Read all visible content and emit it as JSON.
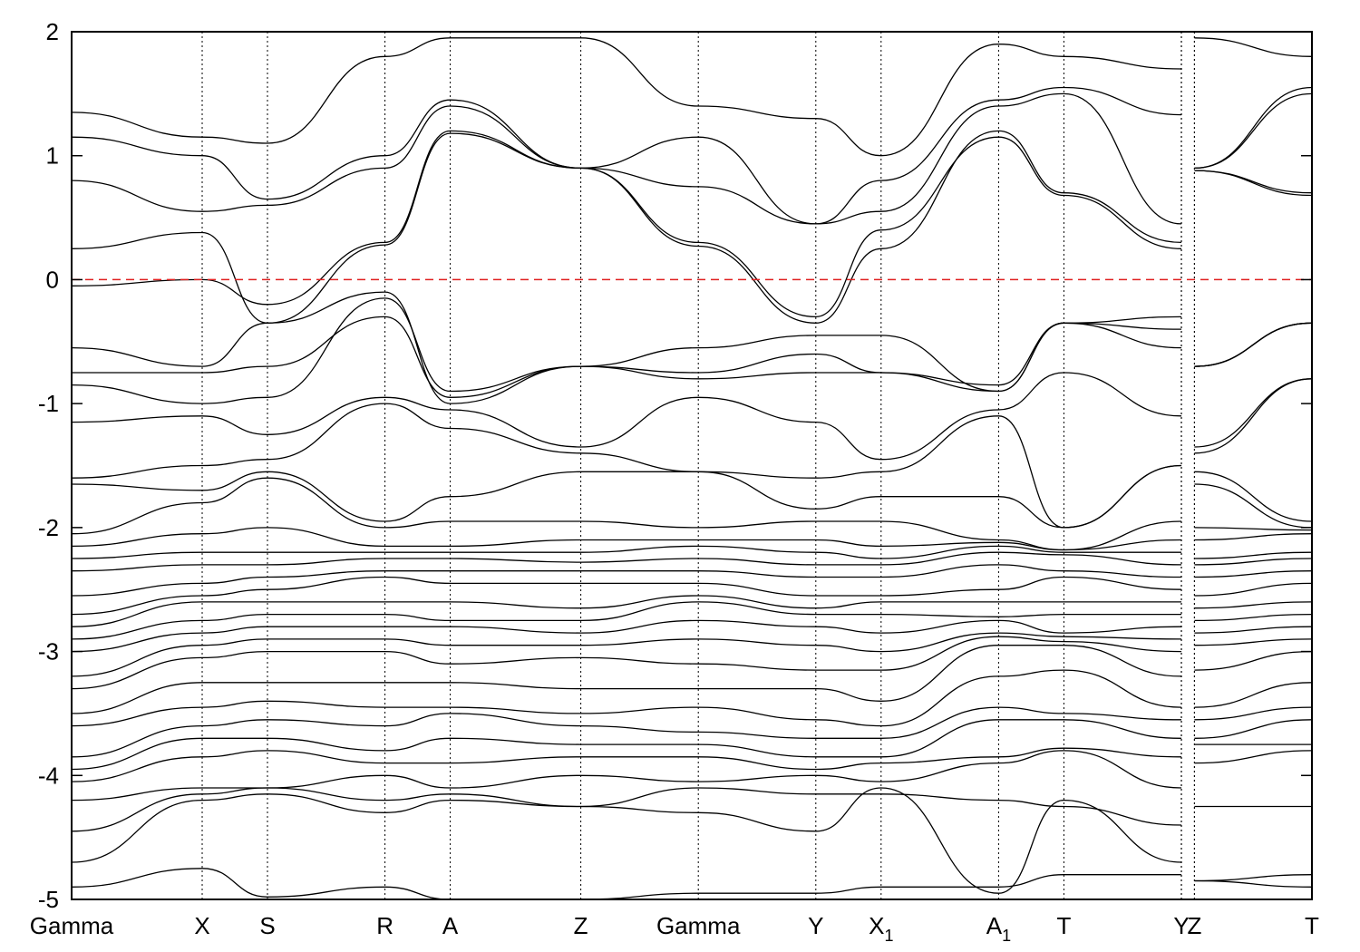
{
  "chart_data": {
    "type": "line",
    "title": "",
    "xlabel": "",
    "ylabel": "",
    "ylim": [
      -5,
      2
    ],
    "y_ticks": [
      -5,
      -4,
      -3,
      -2,
      -1,
      0,
      1,
      2
    ],
    "grid": "vertical dotted lines at high-symmetry points",
    "fermi_level": {
      "y": 0,
      "color": "#e02020",
      "style": "dashed"
    },
    "band_color": "#000000",
    "kpath": [
      {
        "label": "Gamma",
        "sub": "",
        "x": 0.0
      },
      {
        "label": "X",
        "sub": "",
        "x": 0.5
      },
      {
        "label": "S",
        "sub": "",
        "x": 0.75
      },
      {
        "label": "R",
        "sub": "",
        "x": 1.2
      },
      {
        "label": "A",
        "sub": "",
        "x": 1.45
      },
      {
        "label": "Z",
        "sub": "",
        "x": 1.95
      },
      {
        "label": "Gamma",
        "sub": "",
        "x": 2.4
      },
      {
        "label": "Y",
        "sub": "",
        "x": 2.85
      },
      {
        "label": "X",
        "sub": "1",
        "x": 3.1
      },
      {
        "label": "A",
        "sub": "1",
        "x": 3.55
      },
      {
        "label": "T",
        "sub": "",
        "x": 3.8
      },
      {
        "label": "Y",
        "sub": "",
        "x": 4.25
      },
      {
        "label": "Z",
        "sub": "",
        "x": 4.3
      },
      {
        "label": "T",
        "sub": "",
        "x": 4.75
      }
    ],
    "path_breaks_after_index": [
      11
    ],
    "bands": [
      [
        -4.9,
        -4.75,
        -4.98,
        -4.9,
        -5.0,
        -5.0,
        -4.95,
        -4.95,
        -4.9,
        -4.9,
        -4.8,
        -4.8,
        -4.85,
        -4.8
      ],
      [
        -4.7,
        -4.2,
        -4.15,
        -4.3,
        -4.2,
        -4.25,
        -4.3,
        -4.45,
        -4.1,
        -4.95,
        -4.2,
        -4.7,
        -4.85,
        -4.9
      ],
      [
        -4.45,
        -4.15,
        -4.1,
        -4.2,
        -4.15,
        -4.25,
        -4.1,
        -4.15,
        -4.15,
        -4.2,
        -4.25,
        -4.4,
        -4.25,
        -4.25
      ],
      [
        -4.2,
        -4.1,
        -4.1,
        -4.0,
        -4.1,
        -4.0,
        -4.05,
        -4.0,
        -4.05,
        -3.9,
        -3.8,
        -4.1,
        -3.9,
        -3.8
      ],
      [
        -4.05,
        -3.85,
        -3.8,
        -3.9,
        -3.9,
        -3.85,
        -3.85,
        -3.95,
        -3.9,
        -3.85,
        -3.78,
        -3.85,
        -3.75,
        -3.75
      ],
      [
        -3.95,
        -3.7,
        -3.7,
        -3.8,
        -3.7,
        -3.75,
        -3.75,
        -3.85,
        -3.85,
        -3.55,
        -3.55,
        -3.7,
        -3.7,
        -3.55
      ],
      [
        -3.85,
        -3.6,
        -3.55,
        -3.6,
        -3.5,
        -3.6,
        -3.65,
        -3.7,
        -3.7,
        -3.45,
        -3.5,
        -3.55,
        -3.55,
        -3.45
      ],
      [
        -3.6,
        -3.45,
        -3.4,
        -3.45,
        -3.45,
        -3.5,
        -3.45,
        -3.55,
        -3.6,
        -3.2,
        -3.15,
        -3.45,
        -3.45,
        -3.25
      ],
      [
        -3.5,
        -3.25,
        -3.25,
        -3.25,
        -3.25,
        -3.3,
        -3.3,
        -3.3,
        -3.4,
        -2.95,
        -2.95,
        -3.2,
        -3.15,
        -3.0
      ],
      [
        -3.3,
        -3.05,
        -3.0,
        -3.0,
        -3.1,
        -3.05,
        -3.1,
        -3.15,
        -3.15,
        -2.88,
        -2.92,
        -3.0,
        -2.95,
        -2.9
      ],
      [
        -3.2,
        -2.95,
        -2.9,
        -2.9,
        -2.95,
        -2.95,
        -2.9,
        -2.95,
        -3.0,
        -2.85,
        -2.88,
        -2.9,
        -2.85,
        -2.8
      ],
      [
        -3.0,
        -2.85,
        -2.8,
        -2.8,
        -2.8,
        -2.85,
        -2.75,
        -2.8,
        -2.85,
        -2.75,
        -2.85,
        -2.8,
        -2.75,
        -2.7
      ],
      [
        -2.9,
        -2.75,
        -2.7,
        -2.7,
        -2.75,
        -2.75,
        -2.6,
        -2.7,
        -2.7,
        -2.72,
        -2.7,
        -2.7,
        -2.65,
        -2.6
      ],
      [
        -2.8,
        -2.6,
        -2.6,
        -2.6,
        -2.6,
        -2.65,
        -2.55,
        -2.65,
        -2.6,
        -2.6,
        -2.6,
        -2.6,
        -2.55,
        -2.45
      ],
      [
        -2.7,
        -2.55,
        -2.5,
        -2.4,
        -2.45,
        -2.45,
        -2.45,
        -2.55,
        -2.55,
        -2.5,
        -2.4,
        -2.5,
        -2.4,
        -2.35
      ],
      [
        -2.55,
        -2.45,
        -2.4,
        -2.35,
        -2.35,
        -2.35,
        -2.35,
        -2.4,
        -2.4,
        -2.3,
        -2.35,
        -2.4,
        -2.3,
        -2.25
      ],
      [
        -2.35,
        -2.3,
        -2.3,
        -2.25,
        -2.25,
        -2.28,
        -2.25,
        -2.3,
        -2.3,
        -2.2,
        -2.22,
        -2.3,
        -2.25,
        -2.2
      ],
      [
        -2.25,
        -2.2,
        -2.2,
        -2.2,
        -2.2,
        -2.2,
        -2.15,
        -2.2,
        -2.25,
        -2.15,
        -2.2,
        -2.2,
        -2.1,
        -2.05
      ],
      [
        -2.15,
        -2.05,
        -2.0,
        -2.15,
        -2.15,
        -2.1,
        -2.1,
        -2.1,
        -2.15,
        -2.12,
        -2.18,
        -2.1,
        -2.0,
        -2.02
      ],
      [
        -2.05,
        -1.8,
        -1.6,
        -2.0,
        -1.95,
        -1.95,
        -2.0,
        -1.95,
        -1.95,
        -2.1,
        -2.18,
        -1.95,
        -1.65,
        -2.0
      ],
      [
        -1.65,
        -1.7,
        -1.55,
        -1.95,
        -1.75,
        -1.55,
        -1.55,
        -1.85,
        -1.75,
        -1.75,
        -2.0,
        -1.5,
        -1.55,
        -1.95
      ],
      [
        -1.6,
        -1.5,
        -1.45,
        -1.0,
        -1.2,
        -1.4,
        -1.55,
        -1.6,
        -1.55,
        -1.1,
        -2.0,
        -1.5,
        -1.4,
        -0.8
      ],
      [
        -1.15,
        -1.1,
        -1.25,
        -0.95,
        -1.05,
        -1.35,
        -0.95,
        -1.15,
        -1.45,
        -1.05,
        -0.75,
        -1.1,
        -1.35,
        -0.8
      ],
      [
        -0.85,
        -1.0,
        -0.95,
        -0.15,
        -0.9,
        -0.7,
        -0.8,
        -0.75,
        -0.75,
        -0.9,
        -0.35,
        -0.55,
        -0.7,
        -0.35
      ],
      [
        -0.75,
        -0.75,
        -0.7,
        -0.3,
        -0.95,
        -0.7,
        -0.75,
        -0.6,
        -0.75,
        -0.85,
        -0.35,
        -0.4,
        -0.7,
        -0.35
      ],
      [
        -0.55,
        -0.7,
        -0.35,
        -0.1,
        -1.0,
        -0.7,
        -0.55,
        -0.45,
        -0.45,
        -0.9,
        -0.35,
        -0.3,
        -0.7,
        -0.35
      ],
      [
        -0.05,
        0.0,
        -0.2,
        0.3,
        1.2,
        0.9,
        0.27,
        -0.35,
        0.25,
        1.2,
        0.7,
        0.3,
        0.88,
        0.7
      ],
      [
        0.25,
        0.38,
        -0.35,
        0.28,
        1.18,
        0.9,
        0.3,
        -0.3,
        0.4,
        1.15,
        0.68,
        0.25,
        0.88,
        0.68
      ],
      [
        0.8,
        0.55,
        0.6,
        0.9,
        1.4,
        0.9,
        0.75,
        0.45,
        0.55,
        1.4,
        1.5,
        0.45,
        0.9,
        1.5
      ],
      [
        1.15,
        1.0,
        0.65,
        1.0,
        1.45,
        0.9,
        1.15,
        0.45,
        0.8,
        1.45,
        1.55,
        1.33,
        0.9,
        1.55
      ],
      [
        1.35,
        1.15,
        1.1,
        1.8,
        1.95,
        1.95,
        1.4,
        1.3,
        1.0,
        1.9,
        1.8,
        1.7,
        1.95,
        1.8
      ]
    ]
  }
}
